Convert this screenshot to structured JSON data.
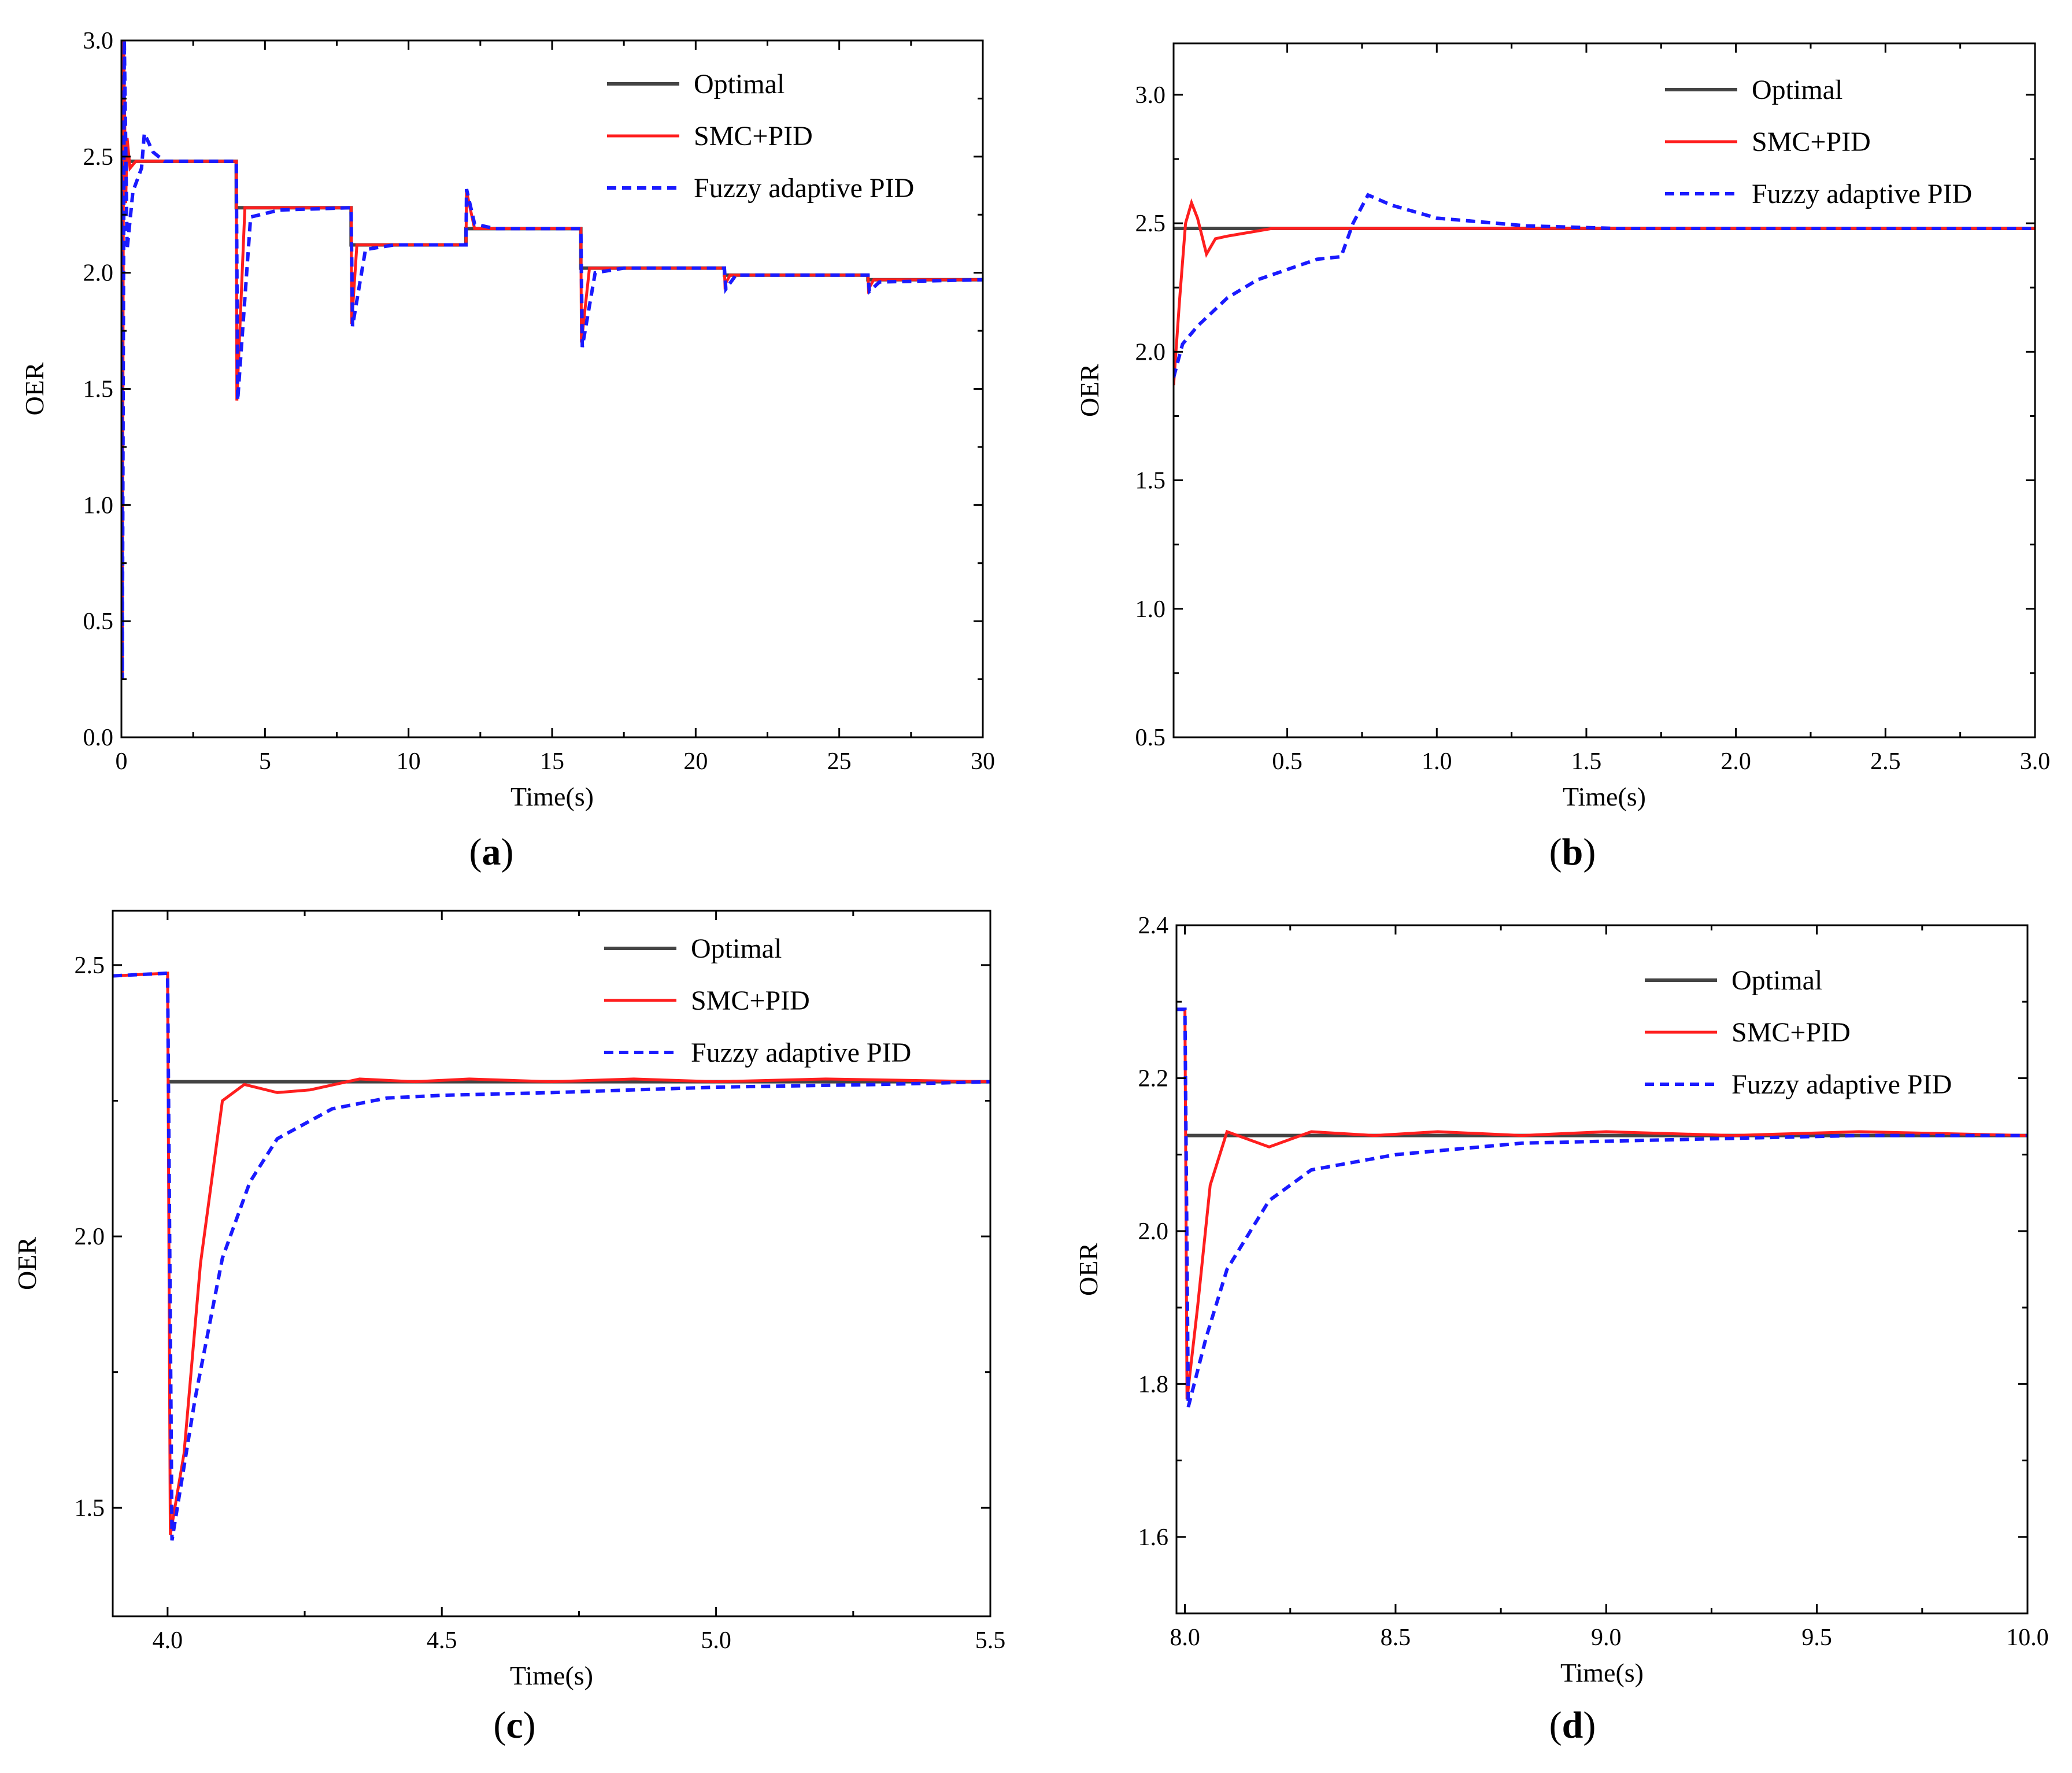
{
  "colors": {
    "optimal": "#444444",
    "smc": "#ff1e1e",
    "fuzzy": "#1a1aff"
  },
  "chart_data": [
    {
      "id": "a",
      "type": "line",
      "caption_letter": "a",
      "xlabel": "Time(s)",
      "ylabel": "OER",
      "xlim": [
        0,
        30
      ],
      "ylim": [
        0,
        3.0
      ],
      "xticks": [
        0,
        5,
        10,
        15,
        20,
        25,
        30
      ],
      "xtick_labels": [
        "0",
        "5",
        "10",
        "15",
        "20",
        "25",
        "30"
      ],
      "yticks": [
        0,
        0.5,
        1.0,
        1.5,
        2.0,
        2.5,
        3.0
      ],
      "ytick_labels": [
        "0.0",
        "0.5",
        "1.0",
        "1.5",
        "2.0",
        "2.5",
        "3.0"
      ],
      "legend": [
        "Optimal",
        "SMC+PID",
        "Fuzzy adaptive PID"
      ],
      "series": [
        {
          "name": "Optimal",
          "style": "optimal",
          "points": [
            [
              0,
              2.48
            ],
            [
              4,
              2.48
            ],
            [
              4,
              2.28
            ],
            [
              8,
              2.28
            ],
            [
              8,
              2.12
            ],
            [
              12,
              2.12
            ],
            [
              12,
              2.19
            ],
            [
              16,
              2.19
            ],
            [
              16,
              2.02
            ],
            [
              21,
              2.02
            ],
            [
              21,
              1.99
            ],
            [
              26,
              1.99
            ],
            [
              26,
              1.97
            ],
            [
              30,
              1.97
            ]
          ]
        },
        {
          "name": "SMC+PID",
          "style": "smc",
          "points": [
            [
              0,
              2.48
            ],
            [
              0.03,
              0.25
            ],
            [
              0.08,
              3.0
            ],
            [
              0.15,
              2.3
            ],
            [
              0.2,
              2.58
            ],
            [
              0.3,
              2.45
            ],
            [
              0.5,
              2.48
            ],
            [
              4.0,
              2.48
            ],
            [
              4.02,
              1.45
            ],
            [
              4.3,
              2.28
            ],
            [
              8.0,
              2.28
            ],
            [
              8.02,
              1.78
            ],
            [
              8.2,
              2.12
            ],
            [
              12.0,
              2.12
            ],
            [
              12.02,
              2.35
            ],
            [
              12.3,
              2.19
            ],
            [
              16.0,
              2.19
            ],
            [
              16.02,
              1.7
            ],
            [
              16.3,
              2.02
            ],
            [
              21.0,
              2.02
            ],
            [
              21.02,
              1.95
            ],
            [
              21.2,
              1.99
            ],
            [
              26.0,
              1.99
            ],
            [
              26.02,
              1.93
            ],
            [
              26.2,
              1.97
            ],
            [
              30,
              1.97
            ]
          ]
        },
        {
          "name": "Fuzzy adaptive PID",
          "style": "fuzzy",
          "points": [
            [
              0,
              2.48
            ],
            [
              0.03,
              0.25
            ],
            [
              0.1,
              3.0
            ],
            [
              0.2,
              2.1
            ],
            [
              0.4,
              2.35
            ],
            [
              0.7,
              2.45
            ],
            [
              0.8,
              2.6
            ],
            [
              1.1,
              2.52
            ],
            [
              1.5,
              2.48
            ],
            [
              4.0,
              2.48
            ],
            [
              4.05,
              1.45
            ],
            [
              4.5,
              2.24
            ],
            [
              5.5,
              2.27
            ],
            [
              8.0,
              2.28
            ],
            [
              8.05,
              1.77
            ],
            [
              8.5,
              2.1
            ],
            [
              9.5,
              2.12
            ],
            [
              12.0,
              2.12
            ],
            [
              12.02,
              2.36
            ],
            [
              12.3,
              2.21
            ],
            [
              13,
              2.19
            ],
            [
              16.0,
              2.19
            ],
            [
              16.05,
              1.68
            ],
            [
              16.5,
              2.0
            ],
            [
              17.5,
              2.02
            ],
            [
              21.0,
              2.02
            ],
            [
              21.05,
              1.93
            ],
            [
              21.4,
              1.99
            ],
            [
              26.0,
              1.99
            ],
            [
              26.05,
              1.92
            ],
            [
              26.4,
              1.96
            ],
            [
              30,
              1.97
            ]
          ]
        }
      ]
    },
    {
      "id": "b",
      "type": "line",
      "caption_letter": "b",
      "xlabel": "Time(s)",
      "ylabel": "OER",
      "xlim": [
        0.12,
        3.0
      ],
      "ylim": [
        0.5,
        3.2
      ],
      "xticks": [
        0.5,
        1.0,
        1.5,
        2.0,
        2.5,
        3.0
      ],
      "xtick_labels": [
        "0.5",
        "1.0",
        "1.5",
        "2.0",
        "2.5",
        "3.0"
      ],
      "yticks": [
        0.5,
        1.0,
        1.5,
        2.0,
        2.5,
        3.0
      ],
      "ytick_labels": [
        "0.5",
        "1.0",
        "1.5",
        "2.0",
        "2.5",
        "3.0"
      ],
      "legend": [
        "Optimal",
        "SMC+PID",
        "Fuzzy adaptive PID"
      ],
      "series": [
        {
          "name": "Optimal",
          "style": "optimal",
          "points": [
            [
              0.12,
              2.48
            ],
            [
              3.0,
              2.48
            ]
          ]
        },
        {
          "name": "SMC+PID",
          "style": "smc",
          "points": [
            [
              0.12,
              1.87
            ],
            [
              0.14,
              2.2
            ],
            [
              0.16,
              2.5
            ],
            [
              0.18,
              2.58
            ],
            [
              0.2,
              2.52
            ],
            [
              0.23,
              2.38
            ],
            [
              0.26,
              2.44
            ],
            [
              0.3,
              2.45
            ],
            [
              0.35,
              2.46
            ],
            [
              0.45,
              2.48
            ],
            [
              3.0,
              2.48
            ]
          ]
        },
        {
          "name": "Fuzzy adaptive PID",
          "style": "fuzzy",
          "points": [
            [
              0.12,
              1.9
            ],
            [
              0.15,
              2.03
            ],
            [
              0.2,
              2.1
            ],
            [
              0.3,
              2.21
            ],
            [
              0.4,
              2.28
            ],
            [
              0.5,
              2.32
            ],
            [
              0.6,
              2.36
            ],
            [
              0.68,
              2.37
            ],
            [
              0.72,
              2.5
            ],
            [
              0.77,
              2.61
            ],
            [
              0.85,
              2.57
            ],
            [
              1.0,
              2.52
            ],
            [
              1.3,
              2.49
            ],
            [
              1.6,
              2.48
            ],
            [
              3.0,
              2.48
            ]
          ]
        }
      ]
    },
    {
      "id": "c",
      "type": "line",
      "caption_letter": "c",
      "xlabel": "Time(s)",
      "ylabel": "OER",
      "xlim": [
        3.9,
        5.5
      ],
      "ylim": [
        1.3,
        2.6
      ],
      "xticks": [
        4.0,
        4.5,
        5.0,
        5.5
      ],
      "xtick_labels": [
        "4.0",
        "4.5",
        "5.0",
        "5.5"
      ],
      "yticks": [
        1.5,
        2.0,
        2.5
      ],
      "ytick_labels": [
        "1.5",
        "2.0",
        "2.5"
      ],
      "legend": [
        "Optimal",
        "SMC+PID",
        "Fuzzy adaptive PID"
      ],
      "series": [
        {
          "name": "Optimal",
          "style": "optimal",
          "points": [
            [
              4.0,
              2.285
            ],
            [
              5.5,
              2.285
            ]
          ]
        },
        {
          "name": "SMC+PID",
          "style": "smc",
          "points": [
            [
              3.9,
              2.48
            ],
            [
              4.0,
              2.485
            ],
            [
              4.005,
              1.45
            ],
            [
              4.03,
              1.6
            ],
            [
              4.06,
              1.95
            ],
            [
              4.1,
              2.25
            ],
            [
              4.14,
              2.28
            ],
            [
              4.2,
              2.265
            ],
            [
              4.26,
              2.27
            ],
            [
              4.35,
              2.29
            ],
            [
              4.45,
              2.285
            ],
            [
              4.55,
              2.29
            ],
            [
              4.7,
              2.285
            ],
            [
              4.85,
              2.29
            ],
            [
              5.0,
              2.285
            ],
            [
              5.2,
              2.29
            ],
            [
              5.5,
              2.285
            ]
          ]
        },
        {
          "name": "Fuzzy adaptive PID",
          "style": "fuzzy",
          "points": [
            [
              3.9,
              2.48
            ],
            [
              4.0,
              2.485
            ],
            [
              4.008,
              1.44
            ],
            [
              4.05,
              1.7
            ],
            [
              4.1,
              1.96
            ],
            [
              4.15,
              2.1
            ],
            [
              4.2,
              2.18
            ],
            [
              4.3,
              2.235
            ],
            [
              4.4,
              2.255
            ],
            [
              4.5,
              2.26
            ],
            [
              4.7,
              2.265
            ],
            [
              5.0,
              2.275
            ],
            [
              5.3,
              2.28
            ],
            [
              5.5,
              2.285
            ]
          ]
        }
      ]
    },
    {
      "id": "d",
      "type": "line",
      "caption_letter": "d",
      "xlabel": "Time(s)",
      "ylabel": "OER",
      "xlim": [
        7.98,
        10.0
      ],
      "ylim": [
        1.5,
        2.4
      ],
      "xticks": [
        8.0,
        8.5,
        9.0,
        9.5,
        10.0
      ],
      "xtick_labels": [
        "8.0",
        "8.5",
        "9.0",
        "9.5",
        "10.0"
      ],
      "yticks": [
        1.6,
        1.8,
        2.0,
        2.2,
        2.4
      ],
      "ytick_labels": [
        "1.6",
        "1.8",
        "2.0",
        "2.2",
        "2.4"
      ],
      "legend": [
        "Optimal",
        "SMC+PID",
        "Fuzzy adaptive PID"
      ],
      "series": [
        {
          "name": "Optimal",
          "style": "optimal",
          "points": [
            [
              8.0,
              2.125
            ],
            [
              10.0,
              2.125
            ]
          ]
        },
        {
          "name": "SMC+PID",
          "style": "smc",
          "points": [
            [
              7.98,
              2.29
            ],
            [
              8.0,
              2.29
            ],
            [
              8.005,
              1.78
            ],
            [
              8.03,
              1.9
            ],
            [
              8.06,
              2.06
            ],
            [
              8.1,
              2.13
            ],
            [
              8.15,
              2.12
            ],
            [
              8.2,
              2.11
            ],
            [
              8.3,
              2.13
            ],
            [
              8.45,
              2.125
            ],
            [
              8.6,
              2.13
            ],
            [
              8.8,
              2.125
            ],
            [
              9.0,
              2.13
            ],
            [
              9.3,
              2.125
            ],
            [
              9.6,
              2.13
            ],
            [
              10.0,
              2.125
            ]
          ]
        },
        {
          "name": "Fuzzy adaptive PID",
          "style": "fuzzy",
          "points": [
            [
              7.98,
              2.29
            ],
            [
              8.0,
              2.29
            ],
            [
              8.008,
              1.77
            ],
            [
              8.05,
              1.86
            ],
            [
              8.1,
              1.95
            ],
            [
              8.2,
              2.04
            ],
            [
              8.3,
              2.08
            ],
            [
              8.5,
              2.1
            ],
            [
              8.8,
              2.115
            ],
            [
              9.2,
              2.12
            ],
            [
              9.6,
              2.125
            ],
            [
              10.0,
              2.125
            ]
          ]
        }
      ]
    }
  ]
}
